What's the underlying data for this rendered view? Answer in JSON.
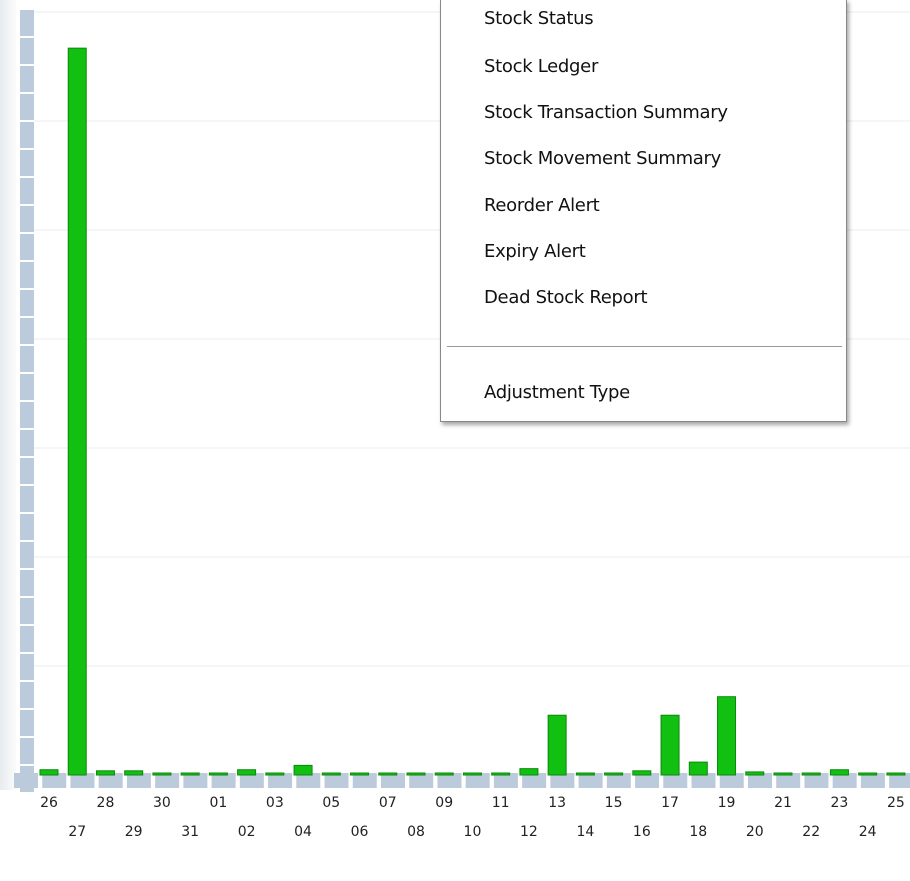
{
  "chart_data": {
    "type": "bar",
    "categories": [
      "26",
      "27",
      "28",
      "29",
      "30",
      "31",
      "01",
      "02",
      "03",
      "04",
      "05",
      "06",
      "07",
      "08",
      "09",
      "10",
      "11",
      "12",
      "13",
      "14",
      "15",
      "16",
      "17",
      "18",
      "19",
      "20",
      "21",
      "22",
      "23",
      "24",
      "25"
    ],
    "values": [
      0.03,
      6.65,
      0.02,
      0.02,
      0,
      0,
      0,
      0.03,
      0,
      0.07,
      0,
      0,
      0,
      0,
      0,
      0,
      0,
      0.04,
      0.53,
      0,
      0,
      0.02,
      0.53,
      0.1,
      0.7,
      0.01,
      0,
      0,
      0.03,
      0,
      0
    ],
    "color": "#11c011",
    "ylim": [
      0,
      7
    ],
    "yticks": [
      0,
      1,
      2,
      3,
      4,
      5,
      6,
      7
    ],
    "grid": true
  },
  "menu": {
    "items": [
      "Stock Status",
      "Stock Ledger",
      "Stock Transaction Summary",
      "Stock Movement Summary",
      "Reorder Alert",
      "Expiry Alert",
      "Dead Stock Report"
    ],
    "footer_item": "Adjustment Type"
  }
}
